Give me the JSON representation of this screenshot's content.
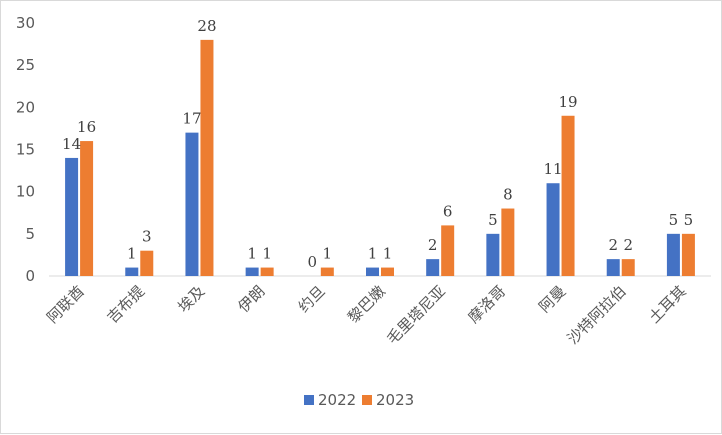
{
  "chart_data": {
    "type": "bar",
    "categories": [
      "阿联酋",
      "吉布提",
      "埃及",
      "伊朗",
      "约旦",
      "黎巴嫩",
      "毛里塔尼亚",
      "摩洛哥",
      "阿曼",
      "沙特阿拉伯",
      "土耳其"
    ],
    "series": [
      {
        "name": "2022",
        "color": "#4472c4",
        "values": [
          14,
          1,
          17,
          1,
          0,
          1,
          2,
          5,
          11,
          2,
          5
        ]
      },
      {
        "name": "2023",
        "color": "#ed7d31",
        "values": [
          16,
          3,
          28,
          1,
          1,
          1,
          6,
          8,
          19,
          2,
          5
        ]
      }
    ],
    "ylim": [
      0,
      30
    ],
    "yticks": [
      0,
      5,
      10,
      15,
      20,
      25,
      30
    ],
    "grid": false,
    "legend": "bottom-center",
    "data_labels": true
  }
}
